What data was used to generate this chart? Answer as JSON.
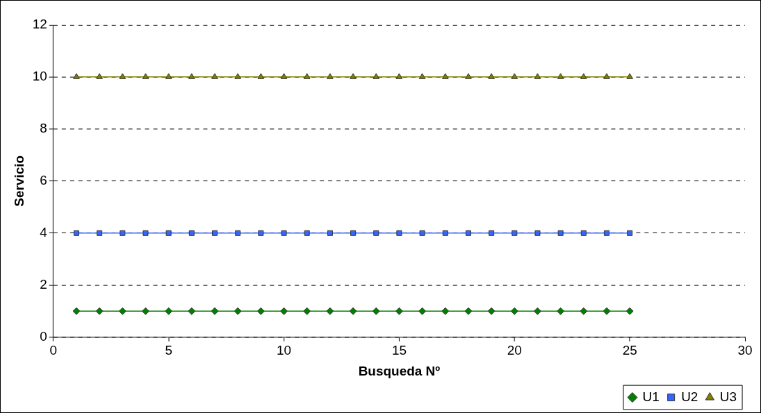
{
  "chart_data": {
    "type": "line",
    "xlabel": "Busqueda Nº",
    "ylabel": "Servicio",
    "x": [
      1,
      2,
      3,
      4,
      5,
      6,
      7,
      8,
      9,
      10,
      11,
      12,
      13,
      14,
      15,
      16,
      17,
      18,
      19,
      20,
      21,
      22,
      23,
      24,
      25
    ],
    "series": [
      {
        "name": "U1",
        "color": "#008000",
        "marker": "diamond",
        "values": [
          1,
          1,
          1,
          1,
          1,
          1,
          1,
          1,
          1,
          1,
          1,
          1,
          1,
          1,
          1,
          1,
          1,
          1,
          1,
          1,
          1,
          1,
          1,
          1,
          1
        ]
      },
      {
        "name": "U2",
        "color": "#3366ff",
        "marker": "square",
        "values": [
          4,
          4,
          4,
          4,
          4,
          4,
          4,
          4,
          4,
          4,
          4,
          4,
          4,
          4,
          4,
          4,
          4,
          4,
          4,
          4,
          4,
          4,
          4,
          4,
          4
        ]
      },
      {
        "name": "U3",
        "color": "#808000",
        "marker": "triangle",
        "values": [
          10,
          10,
          10,
          10,
          10,
          10,
          10,
          10,
          10,
          10,
          10,
          10,
          10,
          10,
          10,
          10,
          10,
          10,
          10,
          10,
          10,
          10,
          10,
          10,
          10
        ]
      }
    ],
    "xlim": [
      0,
      30
    ],
    "xticks": [
      0,
      5,
      10,
      15,
      20,
      25,
      30
    ],
    "ylim": [
      0,
      12
    ],
    "yticks": [
      0,
      2,
      4,
      6,
      8,
      10,
      12
    ],
    "grid": "y",
    "legend": "bottom right",
    "line_style": "solid"
  }
}
